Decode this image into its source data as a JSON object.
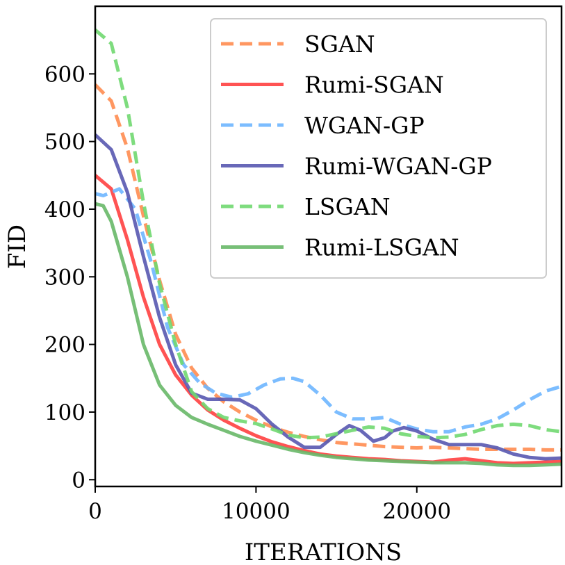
{
  "chart_data": {
    "type": "line",
    "title": "",
    "xlabel": "ITERATIONS",
    "ylabel": "FID",
    "xlim": [
      0,
      29000
    ],
    "ylim": [
      -10,
      700
    ],
    "xticks": [
      0,
      10000,
      20000
    ],
    "xtick_labels": [
      "0",
      "10000",
      "20000"
    ],
    "yticks": [
      0,
      100,
      200,
      300,
      400,
      500,
      600
    ],
    "ytick_labels": [
      "0",
      "100",
      "200",
      "300",
      "400",
      "500",
      "600"
    ],
    "grid": false,
    "legend_position": "top-right",
    "series": [
      {
        "name": "SGAN",
        "color": "#ff8c50",
        "style": "dashed",
        "points": [
          [
            0,
            584
          ],
          [
            1000,
            560
          ],
          [
            2000,
            490
          ],
          [
            3000,
            390
          ],
          [
            4000,
            295
          ],
          [
            5000,
            215
          ],
          [
            6000,
            165
          ],
          [
            7000,
            135
          ],
          [
            8000,
            115
          ],
          [
            9000,
            100
          ],
          [
            10000,
            88
          ],
          [
            11000,
            78
          ],
          [
            12000,
            70
          ],
          [
            13000,
            64
          ],
          [
            14000,
            59
          ],
          [
            15000,
            55
          ],
          [
            16000,
            53
          ],
          [
            17000,
            51
          ],
          [
            18000,
            49
          ],
          [
            19000,
            48
          ],
          [
            20000,
            47
          ],
          [
            21000,
            48
          ],
          [
            22000,
            47
          ],
          [
            23000,
            46
          ],
          [
            24000,
            45
          ],
          [
            25000,
            45
          ],
          [
            26000,
            45
          ],
          [
            27000,
            45
          ],
          [
            28000,
            44
          ],
          [
            29000,
            44
          ]
        ]
      },
      {
        "name": "Rumi-SGAN",
        "color": "#ff4040",
        "style": "solid",
        "points": [
          [
            0,
            450
          ],
          [
            1000,
            430
          ],
          [
            2000,
            355
          ],
          [
            3000,
            270
          ],
          [
            4000,
            200
          ],
          [
            5000,
            155
          ],
          [
            6000,
            125
          ],
          [
            7000,
            103
          ],
          [
            8000,
            88
          ],
          [
            9000,
            76
          ],
          [
            10000,
            65
          ],
          [
            11000,
            56
          ],
          [
            12000,
            49
          ],
          [
            13000,
            43
          ],
          [
            14000,
            38
          ],
          [
            15000,
            35
          ],
          [
            16000,
            33
          ],
          [
            17000,
            31
          ],
          [
            18000,
            30
          ],
          [
            19000,
            28
          ],
          [
            20000,
            27
          ],
          [
            21000,
            26
          ],
          [
            22000,
            29
          ],
          [
            23000,
            31
          ],
          [
            24000,
            28
          ],
          [
            25000,
            25
          ],
          [
            26000,
            24
          ],
          [
            27000,
            25
          ],
          [
            28000,
            26
          ],
          [
            29000,
            27
          ]
        ]
      },
      {
        "name": "WGAN-GP",
        "color": "#6eb6ff",
        "style": "dashed",
        "points": [
          [
            0,
            423
          ],
          [
            500,
            420
          ],
          [
            1500,
            430
          ],
          [
            2500,
            400
          ],
          [
            3500,
            320
          ],
          [
            4500,
            225
          ],
          [
            5500,
            170
          ],
          [
            6500,
            143
          ],
          [
            7500,
            128
          ],
          [
            8500,
            122
          ],
          [
            9500,
            127
          ],
          [
            10500,
            140
          ],
          [
            11500,
            149
          ],
          [
            12300,
            150
          ],
          [
            13000,
            145
          ],
          [
            14000,
            125
          ],
          [
            15000,
            100
          ],
          [
            16000,
            90
          ],
          [
            17000,
            90
          ],
          [
            18000,
            92
          ],
          [
            19000,
            82
          ],
          [
            20000,
            75
          ],
          [
            21000,
            71
          ],
          [
            22000,
            71
          ],
          [
            23000,
            78
          ],
          [
            24000,
            82
          ],
          [
            25000,
            90
          ],
          [
            26000,
            103
          ],
          [
            27000,
            118
          ],
          [
            28000,
            131
          ],
          [
            29000,
            138
          ]
        ]
      },
      {
        "name": "Rumi-WGAN-GP",
        "color": "#5858b0",
        "style": "solid",
        "points": [
          [
            0,
            510
          ],
          [
            1000,
            488
          ],
          [
            2000,
            425
          ],
          [
            3000,
            330
          ],
          [
            4000,
            240
          ],
          [
            5000,
            170
          ],
          [
            6000,
            128
          ],
          [
            7000,
            119
          ],
          [
            8000,
            119
          ],
          [
            9000,
            118
          ],
          [
            10000,
            105
          ],
          [
            11000,
            82
          ],
          [
            12000,
            63
          ],
          [
            13000,
            48
          ],
          [
            14000,
            48
          ],
          [
            15000,
            67
          ],
          [
            15800,
            80
          ],
          [
            16500,
            73
          ],
          [
            17300,
            57
          ],
          [
            18000,
            62
          ],
          [
            18500,
            72
          ],
          [
            19200,
            77
          ],
          [
            20000,
            72
          ],
          [
            21000,
            60
          ],
          [
            22000,
            52
          ],
          [
            23000,
            52
          ],
          [
            24000,
            52
          ],
          [
            25000,
            47
          ],
          [
            26000,
            38
          ],
          [
            27000,
            33
          ],
          [
            28000,
            31
          ],
          [
            29000,
            32
          ]
        ]
      },
      {
        "name": "LSGAN",
        "color": "#70d870",
        "style": "dashed",
        "points": [
          [
            0,
            665
          ],
          [
            1000,
            645
          ],
          [
            2000,
            550
          ],
          [
            3000,
            410
          ],
          [
            4000,
            290
          ],
          [
            5000,
            200
          ],
          [
            6000,
            130
          ],
          [
            7000,
            105
          ],
          [
            8000,
            92
          ],
          [
            9000,
            87
          ],
          [
            10000,
            83
          ],
          [
            11000,
            75
          ],
          [
            12000,
            66
          ],
          [
            13000,
            62
          ],
          [
            14000,
            63
          ],
          [
            15000,
            68
          ],
          [
            16000,
            73
          ],
          [
            17000,
            78
          ],
          [
            18000,
            76
          ],
          [
            19000,
            68
          ],
          [
            20000,
            64
          ],
          [
            21000,
            62
          ],
          [
            22000,
            63
          ],
          [
            23000,
            67
          ],
          [
            24000,
            74
          ],
          [
            25000,
            80
          ],
          [
            26000,
            82
          ],
          [
            27000,
            80
          ],
          [
            28000,
            74
          ],
          [
            29000,
            71
          ]
        ]
      },
      {
        "name": "Rumi-LSGAN",
        "color": "#68b868",
        "style": "solid",
        "points": [
          [
            0,
            408
          ],
          [
            500,
            405
          ],
          [
            1000,
            382
          ],
          [
            2000,
            300
          ],
          [
            3000,
            200
          ],
          [
            4000,
            140
          ],
          [
            5000,
            110
          ],
          [
            6000,
            92
          ],
          [
            7000,
            82
          ],
          [
            8000,
            73
          ],
          [
            9000,
            64
          ],
          [
            10000,
            57
          ],
          [
            11000,
            51
          ],
          [
            12000,
            45
          ],
          [
            13000,
            40
          ],
          [
            14000,
            36
          ],
          [
            15000,
            33
          ],
          [
            16000,
            31
          ],
          [
            17000,
            29
          ],
          [
            18000,
            28
          ],
          [
            19000,
            27
          ],
          [
            20000,
            26
          ],
          [
            21000,
            25
          ],
          [
            22000,
            25
          ],
          [
            23000,
            25
          ],
          [
            24000,
            24
          ],
          [
            25000,
            22
          ],
          [
            26000,
            21
          ],
          [
            27000,
            21
          ],
          [
            28000,
            22
          ],
          [
            29000,
            23
          ]
        ]
      }
    ]
  }
}
